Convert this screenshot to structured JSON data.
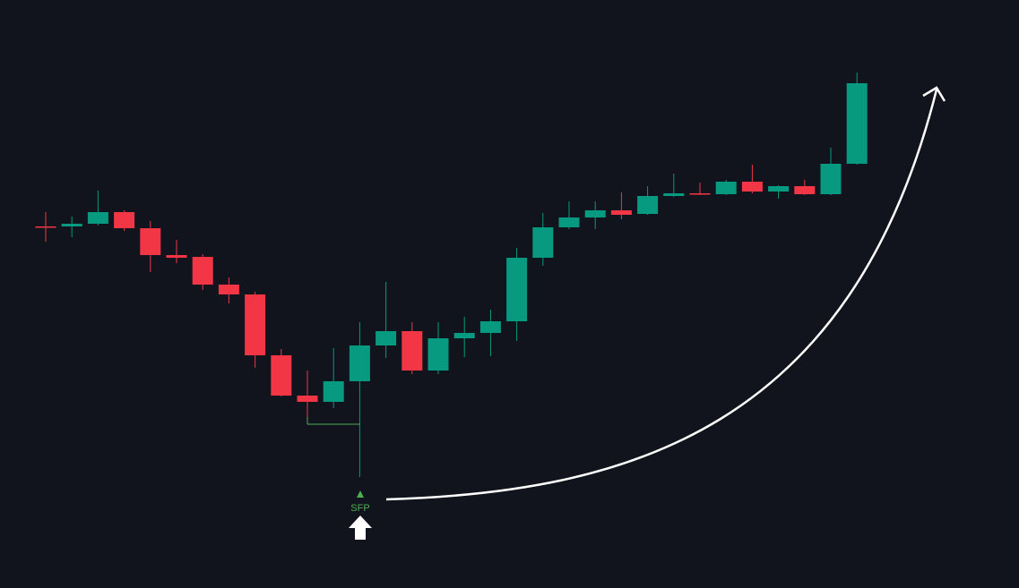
{
  "chart_data": {
    "type": "candlestick",
    "annotation": "SFP",
    "up_color": "#089981",
    "down_color": "#f23645",
    "marker_color": "#4caf50",
    "ylim": [
      0,
      657
    ],
    "open": [
      404,
      404,
      407,
      420,
      402,
      372,
      370,
      339,
      328,
      260,
      215,
      208,
      231,
      271,
      287,
      243,
      279,
      285,
      298,
      369,
      403,
      414,
      422,
      418,
      438,
      441,
      440,
      454,
      443,
      449,
      440,
      474
    ],
    "high": [
      420,
      415,
      444,
      422,
      410,
      389,
      373,
      347,
      331,
      267,
      243,
      268,
      297,
      342,
      297,
      297,
      303,
      311,
      380,
      419,
      432,
      432,
      442,
      449,
      463,
      453,
      456,
      473,
      450,
      456,
      492,
      576
    ],
    "low": [
      387,
      392,
      405,
      399,
      353,
      363,
      333,
      318,
      246,
      214,
      183,
      201,
      124,
      257,
      239,
      239,
      258,
      259,
      276,
      360,
      401,
      401,
      412,
      417,
      437,
      439,
      439,
      441,
      435,
      439,
      439,
      473
    ],
    "close": [
      403,
      407,
      420,
      402,
      372,
      369,
      339,
      328,
      260,
      215,
      208,
      231,
      271,
      287,
      243,
      279,
      285,
      298,
      369,
      403,
      414,
      422,
      417,
      438,
      441,
      440,
      454,
      443,
      449,
      440,
      474,
      564
    ]
  }
}
